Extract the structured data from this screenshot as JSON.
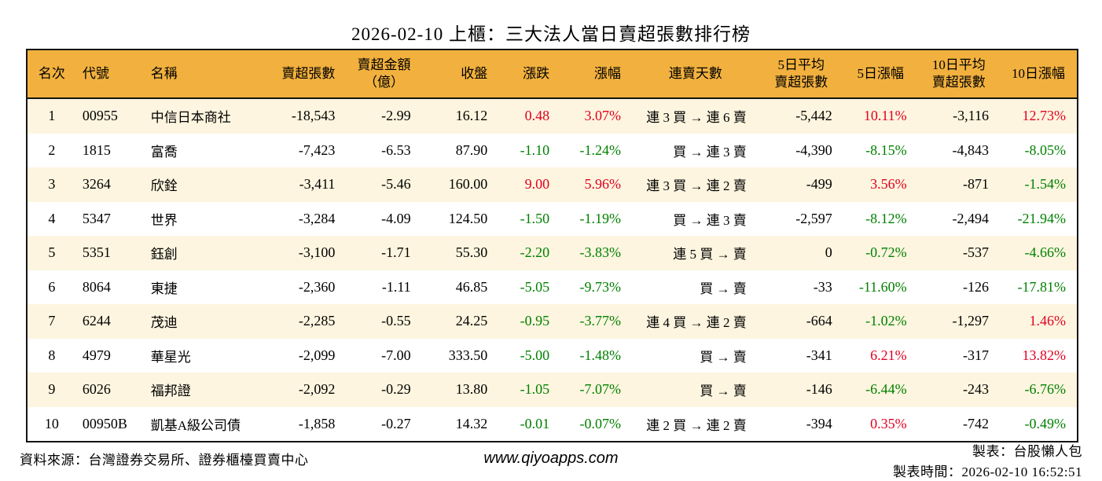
{
  "colors": {
    "header_bg": "#F2B13E",
    "row_stripe": "#FDF5DF",
    "up_red": "#E10020",
    "down_green": "#008000",
    "border": "#141414"
  },
  "chart_data": {
    "type": "table",
    "title": "2026-02-10 上櫃：三大法人當日賣超張數排行榜",
    "columns": [
      "名次",
      "代號",
      "名稱",
      "賣超張數",
      "賣超金額\n（億）",
      "收盤",
      "漲跌",
      "漲幅",
      "連賣天數",
      "5日平均\n賣超張數",
      "5日漲幅",
      "10日平均\n賣超張數",
      "10日漲幅"
    ],
    "rows": [
      {
        "rank": "1",
        "code": "00955",
        "name": "中信日本商社",
        "sell_volume": "-18,543",
        "sell_amount": "-2.99",
        "close": "16.12",
        "change": "0.48",
        "change_color": "red",
        "change_pct": "3.07%",
        "change_pct_color": "red",
        "streak": "連 3 買 → 連 6 賣",
        "avg5": "-5,442",
        "pct5": "10.11%",
        "pct5_color": "red",
        "avg10": "-3,116",
        "pct10": "12.73%",
        "pct10_color": "red"
      },
      {
        "rank": "2",
        "code": "1815",
        "name": "富喬",
        "sell_volume": "-7,423",
        "sell_amount": "-6.53",
        "close": "87.90",
        "change": "-1.10",
        "change_color": "green",
        "change_pct": "-1.24%",
        "change_pct_color": "green",
        "streak": "買 → 連 3 賣",
        "avg5": "-4,390",
        "pct5": "-8.15%",
        "pct5_color": "green",
        "avg10": "-4,843",
        "pct10": "-8.05%",
        "pct10_color": "green"
      },
      {
        "rank": "3",
        "code": "3264",
        "name": "欣銓",
        "sell_volume": "-3,411",
        "sell_amount": "-5.46",
        "close": "160.00",
        "change": "9.00",
        "change_color": "red",
        "change_pct": "5.96%",
        "change_pct_color": "red",
        "streak": "連 3 買 → 連 2 賣",
        "avg5": "-499",
        "pct5": "3.56%",
        "pct5_color": "red",
        "avg10": "-871",
        "pct10": "-1.54%",
        "pct10_color": "green"
      },
      {
        "rank": "4",
        "code": "5347",
        "name": "世界",
        "sell_volume": "-3,284",
        "sell_amount": "-4.09",
        "close": "124.50",
        "change": "-1.50",
        "change_color": "green",
        "change_pct": "-1.19%",
        "change_pct_color": "green",
        "streak": "買 → 連 3 賣",
        "avg5": "-2,597",
        "pct5": "-8.12%",
        "pct5_color": "green",
        "avg10": "-2,494",
        "pct10": "-21.94%",
        "pct10_color": "green"
      },
      {
        "rank": "5",
        "code": "5351",
        "name": "鈺創",
        "sell_volume": "-3,100",
        "sell_amount": "-1.71",
        "close": "55.30",
        "change": "-2.20",
        "change_color": "green",
        "change_pct": "-3.83%",
        "change_pct_color": "green",
        "streak": "連 5 買 → 賣",
        "avg5": "0",
        "pct5": "-0.72%",
        "pct5_color": "green",
        "avg10": "-537",
        "pct10": "-4.66%",
        "pct10_color": "green"
      },
      {
        "rank": "6",
        "code": "8064",
        "name": "東捷",
        "sell_volume": "-2,360",
        "sell_amount": "-1.11",
        "close": "46.85",
        "change": "-5.05",
        "change_color": "green",
        "change_pct": "-9.73%",
        "change_pct_color": "green",
        "streak": "買 → 賣",
        "avg5": "-33",
        "pct5": "-11.60%",
        "pct5_color": "green",
        "avg10": "-126",
        "pct10": "-17.81%",
        "pct10_color": "green"
      },
      {
        "rank": "7",
        "code": "6244",
        "name": "茂迪",
        "sell_volume": "-2,285",
        "sell_amount": "-0.55",
        "close": "24.25",
        "change": "-0.95",
        "change_color": "green",
        "change_pct": "-3.77%",
        "change_pct_color": "green",
        "streak": "連 4 買 → 連 2 賣",
        "avg5": "-664",
        "pct5": "-1.02%",
        "pct5_color": "green",
        "avg10": "-1,297",
        "pct10": "1.46%",
        "pct10_color": "red"
      },
      {
        "rank": "8",
        "code": "4979",
        "name": "華星光",
        "sell_volume": "-2,099",
        "sell_amount": "-7.00",
        "close": "333.50",
        "change": "-5.00",
        "change_color": "green",
        "change_pct": "-1.48%",
        "change_pct_color": "green",
        "streak": "買 → 賣",
        "avg5": "-341",
        "pct5": "6.21%",
        "pct5_color": "red",
        "avg10": "-317",
        "pct10": "13.82%",
        "pct10_color": "red"
      },
      {
        "rank": "9",
        "code": "6026",
        "name": "福邦證",
        "sell_volume": "-2,092",
        "sell_amount": "-0.29",
        "close": "13.80",
        "change": "-1.05",
        "change_color": "green",
        "change_pct": "-7.07%",
        "change_pct_color": "green",
        "streak": "買 → 賣",
        "avg5": "-146",
        "pct5": "-6.44%",
        "pct5_color": "green",
        "avg10": "-243",
        "pct10": "-6.76%",
        "pct10_color": "green"
      },
      {
        "rank": "10",
        "code": "00950B",
        "name": "凱基A級公司債",
        "sell_volume": "-1,858",
        "sell_amount": "-0.27",
        "close": "14.32",
        "change": "-0.01",
        "change_color": "green",
        "change_pct": "-0.07%",
        "change_pct_color": "green",
        "streak": "連 2 買 → 連 2 賣",
        "avg5": "-394",
        "pct5": "0.35%",
        "pct5_color": "red",
        "avg10": "-742",
        "pct10": "-0.49%",
        "pct10_color": "green"
      }
    ]
  },
  "footer": {
    "source": "資料來源：台灣證券交易所、證券櫃檯買賣中心",
    "website": "www.qiyoapps.com",
    "maker": "製表：台股懶人包",
    "made_time": "製表時間：2026-02-10 16:52:51"
  }
}
